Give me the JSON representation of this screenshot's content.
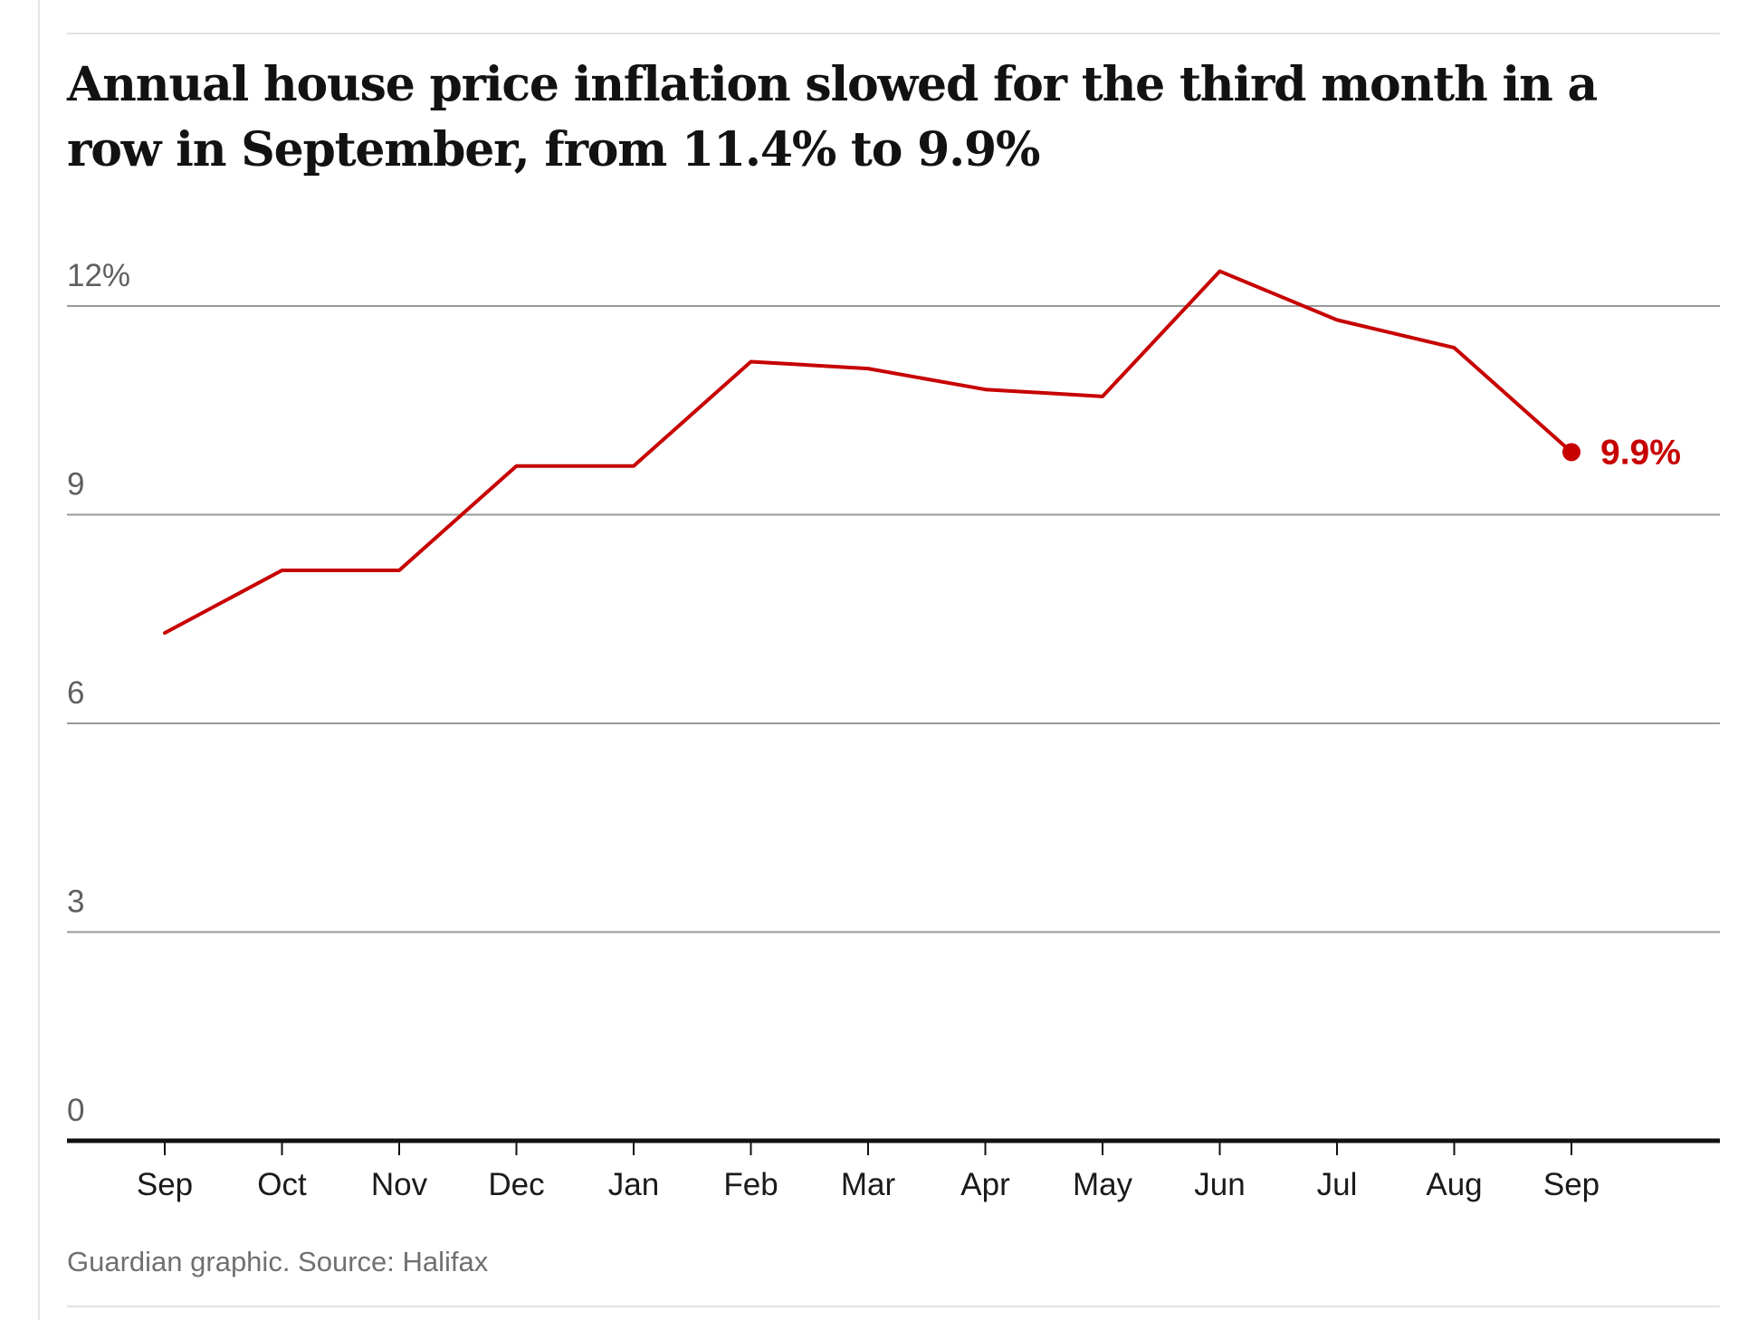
{
  "title": "Annual house price inflation slowed for the third month in a row in September, from 11.4% to 9.9%",
  "source": "Guardian graphic. Source: Halifax",
  "colors": {
    "series": "#c70000",
    "grid": "#999999",
    "axis": "#121212",
    "background": "#ffffff"
  },
  "chart_data": {
    "type": "line",
    "title": "Annual house price inflation slowed for the third month in a row in September, from 11.4% to 9.9%",
    "xlabel": "",
    "ylabel": "",
    "ylim": [
      0,
      12
    ],
    "y_ticks": [
      {
        "value": 12,
        "label": "12%"
      },
      {
        "value": 9,
        "label": "9"
      },
      {
        "value": 6,
        "label": "6"
      },
      {
        "value": 3,
        "label": "3"
      },
      {
        "value": 0,
        "label": "0"
      }
    ],
    "categories": [
      "Sep",
      "Oct",
      "Nov",
      "Dec",
      "Jan",
      "Feb",
      "Mar",
      "Apr",
      "May",
      "Jun",
      "Jul",
      "Aug",
      "Sep"
    ],
    "series": [
      {
        "name": "Annual house price inflation",
        "values": [
          7.3,
          8.2,
          8.2,
          9.7,
          9.7,
          11.2,
          11.1,
          10.8,
          10.7,
          12.5,
          11.8,
          11.4,
          9.9
        ]
      }
    ],
    "end_label": "9.9%",
    "grid": true,
    "legend": "none"
  }
}
